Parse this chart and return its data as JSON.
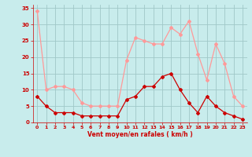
{
  "x": [
    0,
    1,
    2,
    3,
    4,
    5,
    6,
    7,
    8,
    9,
    10,
    11,
    12,
    13,
    14,
    15,
    16,
    17,
    18,
    19,
    20,
    21,
    22,
    23
  ],
  "moyen": [
    8,
    5,
    3,
    3,
    3,
    2,
    2,
    2,
    2,
    2,
    7,
    8,
    11,
    11,
    14,
    15,
    10,
    6,
    3,
    8,
    5,
    3,
    2,
    1
  ],
  "rafales": [
    34,
    10,
    11,
    11,
    10,
    6,
    5,
    5,
    5,
    5,
    19,
    26,
    25,
    24,
    24,
    29,
    27,
    31,
    21,
    13,
    24,
    18,
    8,
    5
  ],
  "xlabel": "Vent moyen/en rafales ( km/h )",
  "ylim": [
    0,
    36
  ],
  "xlim": [
    -0.5,
    23.5
  ],
  "yticks": [
    0,
    5,
    10,
    15,
    20,
    25,
    30,
    35
  ],
  "xticks": [
    0,
    1,
    2,
    3,
    4,
    5,
    6,
    7,
    8,
    9,
    10,
    11,
    12,
    13,
    14,
    15,
    16,
    17,
    18,
    19,
    20,
    21,
    22,
    23
  ],
  "color_moyen": "#cc0000",
  "color_rafales": "#ff9999",
  "bg_color": "#c8ecec",
  "grid_color": "#a0c8c8",
  "xlabel_color": "#cc0000",
  "tick_color": "#cc0000",
  "marker": "D",
  "markersize": 2,
  "linewidth": 0.9
}
